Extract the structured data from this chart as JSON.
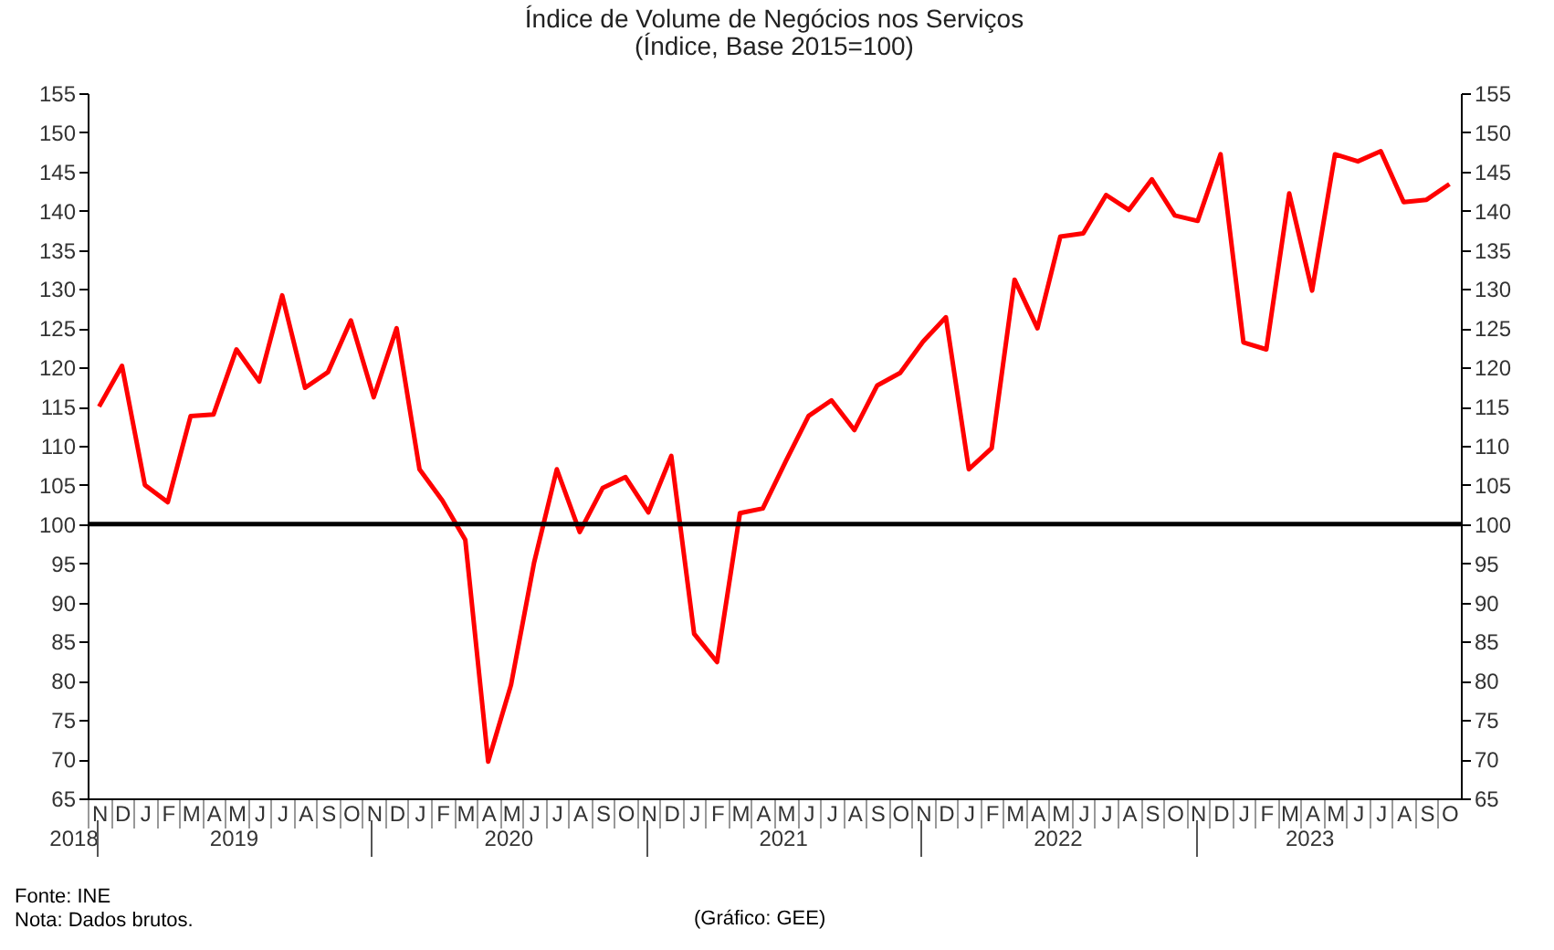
{
  "chart_data": {
    "type": "line",
    "title": "Índice de Volume de Negócios nos Serviços",
    "subtitle": "(Índice, Base 2015=100)",
    "categories": [
      "N",
      "D",
      "J",
      "F",
      "M",
      "A",
      "M",
      "J",
      "J",
      "A",
      "S",
      "O",
      "N",
      "D",
      "J",
      "F",
      "M",
      "A",
      "M",
      "J",
      "J",
      "A",
      "S",
      "O",
      "N",
      "D",
      "J",
      "F",
      "M",
      "A",
      "M",
      "J",
      "J",
      "A",
      "S",
      "O",
      "N",
      "D",
      "J",
      "F",
      "M",
      "A",
      "M",
      "J",
      "J",
      "A",
      "S",
      "O",
      "N",
      "D",
      "J",
      "F",
      "M",
      "A",
      "M",
      "J",
      "J",
      "A",
      "S",
      "O"
    ],
    "series": [
      {
        "color": "#ff0000",
        "values": [
          115,
          120.2,
          105,
          102.8,
          113.8,
          114,
          122.3,
          118.2,
          129.2,
          117.4,
          119.4,
          126,
          116.2,
          125,
          107,
          103,
          98,
          69.7,
          79.5,
          95,
          107,
          99,
          104.6,
          106,
          101.5,
          108.7,
          86,
          82.4,
          101.4,
          102,
          108,
          113.8,
          115.8,
          112,
          117.7,
          119.3,
          123.3,
          126.4,
          107,
          109.7,
          131.2,
          125,
          136.7,
          137.1,
          142,
          140.1,
          144,
          139.4,
          138.7,
          147.2,
          123.2,
          122.3,
          142.2,
          129.8,
          147.2,
          146.3,
          147.6,
          141.1,
          141.4,
          143.4
        ]
      }
    ],
    "ylim": [
      65,
      155
    ],
    "yticks": [
      65,
      70,
      75,
      80,
      85,
      90,
      95,
      100,
      105,
      110,
      115,
      120,
      125,
      130,
      135,
      140,
      145,
      150,
      155
    ],
    "y2lim": [
      65,
      155
    ],
    "y2ticks": [
      65,
      70,
      75,
      80,
      85,
      90,
      95,
      100,
      105,
      110,
      115,
      120,
      125,
      130,
      135,
      140,
      145,
      150,
      155
    ],
    "ref_lines": [
      {
        "axis": "y",
        "value": 100,
        "color": "#000000"
      }
    ],
    "grid": false,
    "legend": false,
    "marker": "none",
    "line_style": "solid",
    "annotations": [
      "2018",
      "2019",
      "2020",
      "2021",
      "2022",
      "2023",
      "Fonte: INE",
      "Nota: Dados brutos.",
      "(Gráfico: GEE)"
    ]
  }
}
